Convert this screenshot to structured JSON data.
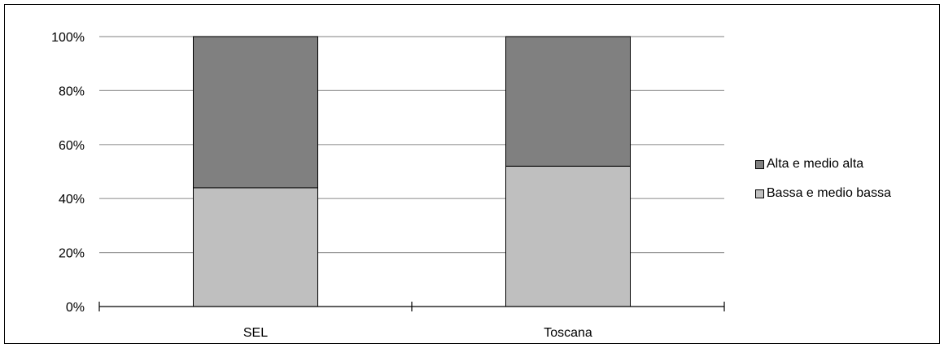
{
  "chart_data": {
    "type": "bar",
    "stacked": true,
    "categories": [
      "SEL",
      "Toscana"
    ],
    "series": [
      {
        "name": "Bassa e medio bassa",
        "values": [
          44,
          52
        ],
        "color": "#bfbfbf"
      },
      {
        "name": "Alta e medio alta",
        "values": [
          56,
          48
        ],
        "color": "#808080"
      }
    ],
    "ylim": [
      0,
      100
    ],
    "yticks": [
      "0%",
      "20%",
      "40%",
      "60%",
      "80%",
      "100%"
    ],
    "ytick_values": [
      0,
      20,
      40,
      60,
      80,
      100
    ],
    "grid": true,
    "legend_position": "right",
    "legend_order": [
      "Alta e medio alta",
      "Bassa e medio bassa"
    ]
  }
}
